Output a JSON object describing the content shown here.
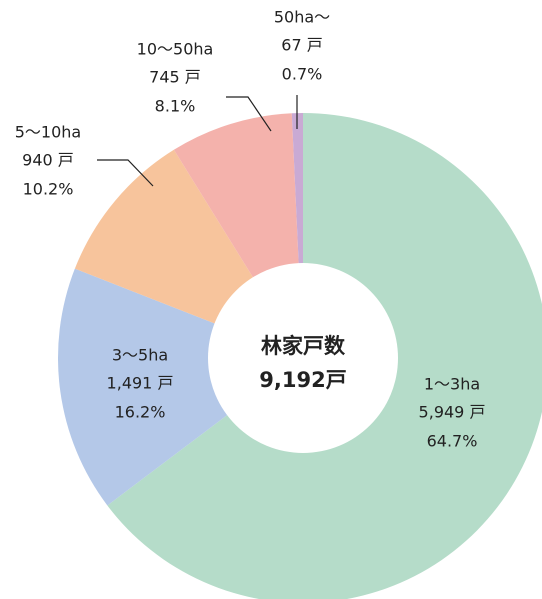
{
  "chart_data": {
    "type": "donut",
    "categories": [
      "1〜3ha",
      "3〜5ha",
      "5〜10ha",
      "10〜50ha",
      "50ha〜"
    ],
    "values": [
      5949,
      1491,
      940,
      745,
      67
    ],
    "value_labels": [
      "5,949 戸",
      "1,491 戸",
      "940 戸",
      "745 戸",
      "67 戸"
    ],
    "percentages": [
      64.7,
      16.2,
      10.2,
      8.1,
      0.7
    ],
    "percentage_labels": [
      "64.7%",
      "16.2%",
      "10.2%",
      "8.1%",
      "0.7%"
    ],
    "colors": [
      "#b5dcc9",
      "#b4c8e8",
      "#f7c49c",
      "#f4b2ac",
      "#c9aad4"
    ],
    "center_label": "林家戸数",
    "total": 9192,
    "total_label": "9,192戸"
  }
}
